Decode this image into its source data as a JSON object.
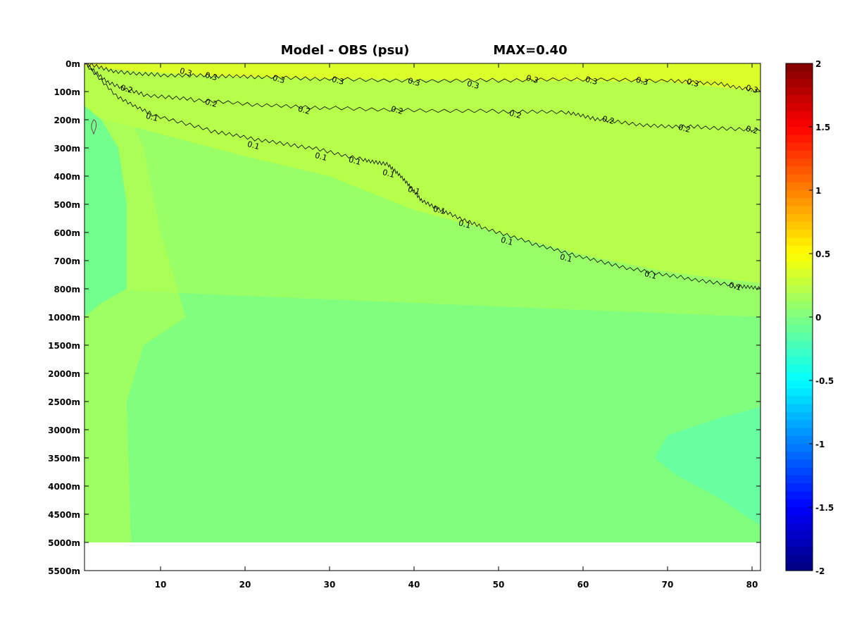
{
  "title": "Model - OBS (psu)",
  "subtitle": "MAX=0.40",
  "colors": {
    "background_fill": "#b6ff4a",
    "surface_yellow": "#dcff2a",
    "mid_green": "#99ff66",
    "deep_green": "#80ff7f",
    "pale_teal": "#72ff8d",
    "teal_patch": "#67ffa0",
    "no_data": "#ffffff"
  },
  "chart_data": {
    "type": "heatmap",
    "title": "Model - OBS (psu)",
    "subtitle": "MAX=0.40",
    "xlabel": "",
    "ylabel": "",
    "xlim": [
      1,
      81
    ],
    "x_ticks": [
      10,
      20,
      30,
      40,
      50,
      60,
      70,
      80
    ],
    "x_tick_labels": [
      "10",
      "20",
      "30",
      "40",
      "50",
      "60",
      "70",
      "80"
    ],
    "y_axis": "depth levels (non-linear), top to bottom",
    "y_tick_labels": [
      "0m",
      "100m",
      "200m",
      "300m",
      "400m",
      "500m",
      "600m",
      "700m",
      "800m",
      "1000m",
      "1500m",
      "2000m",
      "2500m",
      "3000m",
      "3500m",
      "4000m",
      "4500m",
      "5000m",
      "5500m"
    ],
    "depth_values": [
      0,
      100,
      200,
      300,
      400,
      500,
      600,
      700,
      800,
      1000,
      1500,
      2000,
      2500,
      3000,
      3500,
      4000,
      4500,
      5000,
      5500
    ],
    "data_bottom_depth": 5000,
    "colorbar": {
      "min": -2,
      "max": 2,
      "ticks": [
        2,
        1.5,
        1,
        0.5,
        0,
        -0.5,
        -1,
        -1.5,
        -2
      ],
      "tick_labels": [
        "2",
        "1.5",
        "1",
        "0.5",
        "0",
        "-0.5",
        "-1",
        "-1.5",
        "-2"
      ],
      "colormap": "jet"
    },
    "contours": [
      {
        "level": 0.3,
        "label": "0.3",
        "points": [
          [
            1,
            0
          ],
          [
            5,
            30
          ],
          [
            10,
            40
          ],
          [
            16,
            45
          ],
          [
            22,
            50
          ],
          [
            30,
            55
          ],
          [
            40,
            60
          ],
          [
            50,
            60
          ],
          [
            60,
            58
          ],
          [
            70,
            62
          ],
          [
            76,
            70
          ],
          [
            81,
            100
          ]
        ],
        "label_positions": [
          [
            13,
            30
          ],
          [
            16,
            45
          ],
          [
            24,
            55
          ],
          [
            31,
            60
          ],
          [
            40,
            65
          ],
          [
            47,
            75
          ],
          [
            54,
            55
          ],
          [
            61,
            60
          ],
          [
            67,
            62
          ],
          [
            73,
            68
          ],
          [
            80,
            90
          ]
        ]
      },
      {
        "level": 0.2,
        "label": "0.2",
        "points": [
          [
            1,
            0
          ],
          [
            4,
            70
          ],
          [
            8,
            110
          ],
          [
            14,
            130
          ],
          [
            22,
            150
          ],
          [
            30,
            158
          ],
          [
            40,
            165
          ],
          [
            50,
            170
          ],
          [
            58,
            175
          ],
          [
            62,
            200
          ],
          [
            68,
            220
          ],
          [
            74,
            225
          ],
          [
            81,
            240
          ]
        ],
        "label_positions": [
          [
            6,
            90
          ],
          [
            16,
            140
          ],
          [
            27,
            165
          ],
          [
            38,
            165
          ],
          [
            52,
            180
          ],
          [
            63,
            200
          ],
          [
            72,
            230
          ],
          [
            80,
            235
          ]
        ]
      },
      {
        "level": 0.1,
        "label": "0.1",
        "points": [
          [
            1,
            0
          ],
          [
            5,
            120
          ],
          [
            9,
            180
          ],
          [
            16,
            240
          ],
          [
            22,
            275
          ],
          [
            28,
            300
          ],
          [
            34,
            340
          ],
          [
            37,
            360
          ],
          [
            39,
            420
          ],
          [
            41,
            490
          ],
          [
            44,
            530
          ],
          [
            48,
            580
          ],
          [
            54,
            640
          ],
          [
            60,
            690
          ],
          [
            66,
            730
          ],
          [
            72,
            760
          ],
          [
            78,
            790
          ],
          [
            81,
            800
          ]
        ],
        "label_positions": [
          [
            9,
            190
          ],
          [
            21,
            290
          ],
          [
            29,
            330
          ],
          [
            33,
            345
          ],
          [
            37,
            390
          ],
          [
            40,
            450
          ],
          [
            43,
            520
          ],
          [
            46,
            570
          ],
          [
            51,
            630
          ],
          [
            58,
            690
          ],
          [
            68,
            750
          ],
          [
            78,
            790
          ]
        ]
      }
    ],
    "regions": [
      {
        "name": "surface band",
        "value_approx": 0.3
      },
      {
        "name": "upper layer",
        "value_approx": 0.2
      },
      {
        "name": "thermocline layer",
        "value_approx": 0.1
      },
      {
        "name": "deep water",
        "value_approx": 0.05
      },
      {
        "name": "western boundary strip",
        "value_approx": 0.1
      },
      {
        "name": "deep eastern patch",
        "value_approx": -0.02
      }
    ]
  }
}
